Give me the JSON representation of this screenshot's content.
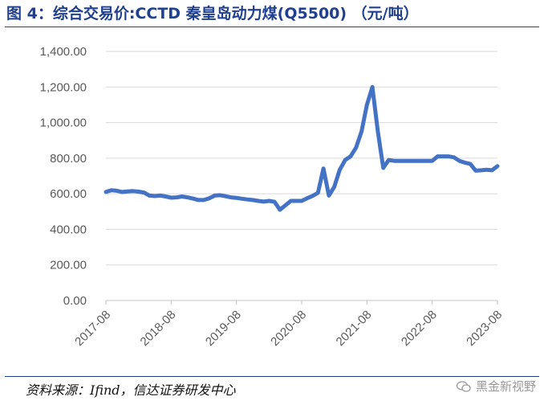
{
  "title": "图 4：综合交易价:CCTD 秦皇岛动力煤(Q5500) （元/吨）",
  "source": "资料来源：Ifind，信达证券研发中心",
  "watermark": "黑金新视野",
  "colors": {
    "line": "#4472c4",
    "title": "#1f3f8f",
    "axis": "#d9d9d9"
  },
  "chart_data": {
    "type": "line",
    "title": "综合交易价:CCTD 秦皇岛动力煤(Q5500) （元/吨）",
    "xlabel": "",
    "ylabel": "",
    "ylim": [
      0,
      1400
    ],
    "yticks": [
      "0.00",
      "200.00",
      "400.00",
      "600.00",
      "800.00",
      "1,000.00",
      "1,200.00",
      "1,400.00"
    ],
    "xticks": [
      "2017-08",
      "2018-08",
      "2019-08",
      "2020-08",
      "2021-08",
      "2022-08",
      "2023-08"
    ],
    "grid": "horizontal",
    "legend": "none",
    "series": [
      {
        "name": "",
        "points": [
          [
            "2017-08",
            610
          ],
          [
            "2017-09",
            620
          ],
          [
            "2017-10",
            617
          ],
          [
            "2017-11",
            610
          ],
          [
            "2017-12",
            613
          ],
          [
            "2018-01",
            615
          ],
          [
            "2018-02",
            612
          ],
          [
            "2018-03",
            607
          ],
          [
            "2018-04",
            590
          ],
          [
            "2018-05",
            587
          ],
          [
            "2018-06",
            590
          ],
          [
            "2018-07",
            585
          ],
          [
            "2018-08",
            578
          ],
          [
            "2018-09",
            580
          ],
          [
            "2018-10",
            585
          ],
          [
            "2018-11",
            580
          ],
          [
            "2018-12",
            573
          ],
          [
            "2019-01",
            565
          ],
          [
            "2019-02",
            565
          ],
          [
            "2019-03",
            575
          ],
          [
            "2019-04",
            590
          ],
          [
            "2019-05",
            592
          ],
          [
            "2019-06",
            586
          ],
          [
            "2019-07",
            580
          ],
          [
            "2019-08",
            577
          ],
          [
            "2019-09",
            572
          ],
          [
            "2019-10",
            568
          ],
          [
            "2019-11",
            565
          ],
          [
            "2019-12",
            560
          ],
          [
            "2020-01",
            556
          ],
          [
            "2020-02",
            560
          ],
          [
            "2020-03",
            555
          ],
          [
            "2020-04",
            510
          ],
          [
            "2020-05",
            535
          ],
          [
            "2020-06",
            560
          ],
          [
            "2020-07",
            560
          ],
          [
            "2020-08",
            560
          ],
          [
            "2020-09",
            575
          ],
          [
            "2020-10",
            588
          ],
          [
            "2020-11",
            605
          ],
          [
            "2020-12",
            742
          ],
          [
            "2021-01",
            590
          ],
          [
            "2021-02",
            640
          ],
          [
            "2021-03",
            735
          ],
          [
            "2021-04",
            790
          ],
          [
            "2021-05",
            810
          ],
          [
            "2021-06",
            860
          ],
          [
            "2021-07",
            950
          ],
          [
            "2021-08",
            1100
          ],
          [
            "2021-09",
            1200
          ],
          [
            "2021-10",
            950
          ],
          [
            "2021-11",
            745
          ],
          [
            "2021-12",
            790
          ],
          [
            "2022-01",
            785
          ],
          [
            "2022-02",
            785
          ],
          [
            "2022-03",
            785
          ],
          [
            "2022-04",
            785
          ],
          [
            "2022-05",
            785
          ],
          [
            "2022-06",
            785
          ],
          [
            "2022-07",
            785
          ],
          [
            "2022-08",
            785
          ],
          [
            "2022-09",
            810
          ],
          [
            "2022-10",
            810
          ],
          [
            "2022-11",
            810
          ],
          [
            "2022-12",
            805
          ],
          [
            "2023-01",
            785
          ],
          [
            "2023-02",
            775
          ],
          [
            "2023-03",
            768
          ],
          [
            "2023-04",
            730
          ],
          [
            "2023-05",
            732
          ],
          [
            "2023-06",
            735
          ],
          [
            "2023-07",
            732
          ],
          [
            "2023-08",
            755
          ]
        ]
      }
    ]
  }
}
